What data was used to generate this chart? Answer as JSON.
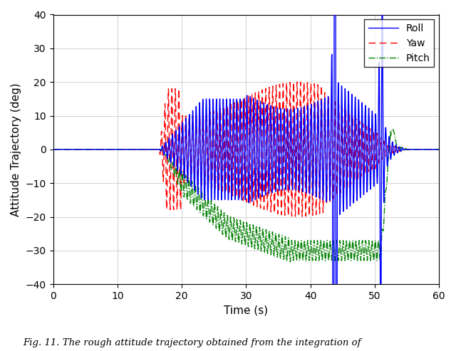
{
  "title": "",
  "xlabel": "Time (s)",
  "ylabel": "Attitude Trajectory (deg)",
  "xlim": [
    0,
    60
  ],
  "ylim": [
    -40,
    40
  ],
  "xticks": [
    0,
    10,
    20,
    30,
    40,
    50,
    60
  ],
  "yticks": [
    -40,
    -30,
    -20,
    -10,
    0,
    10,
    20,
    30,
    40
  ],
  "roll_color": "#0000FF",
  "yaw_color": "#FF0000",
  "pitch_color": "#008000",
  "caption": "Fig. 11. The rough attitude trajectory obtained from the integration of",
  "legend_labels": [
    "Roll",
    "Yaw",
    "Pitch"
  ],
  "figsize": [
    6.4,
    4.93
  ],
  "dpi": 100
}
